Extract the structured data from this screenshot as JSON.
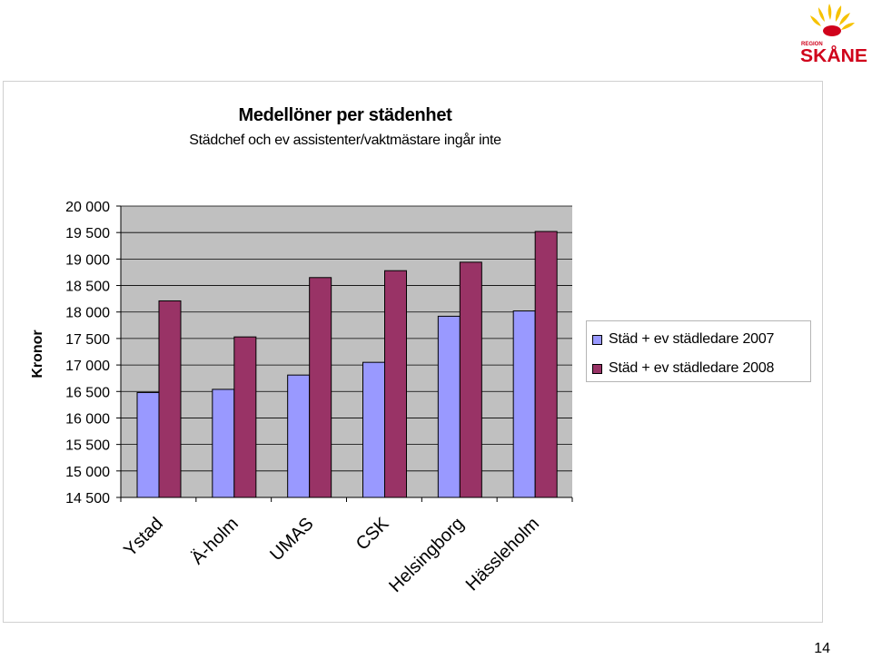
{
  "brand": {
    "logo_text_top": "REGION",
    "logo_text_main": "SKÅNE",
    "logo_yellow": "#f6c200",
    "logo_red": "#d0021b"
  },
  "page": {
    "number": "14"
  },
  "chart_data": {
    "type": "bar",
    "title": "Medellöner per städenhet",
    "subtitle": "Städchef och ev assistenter/vaktmästare ingår inte",
    "ylabel": "Kronor",
    "xlabel": "",
    "categories": [
      "Ystad",
      "Ä-holm",
      "UMAS",
      "CSK",
      "Helsingborg",
      "Hässleholm"
    ],
    "series": [
      {
        "name": "Städ + ev städledare 2007",
        "color": "#9999ff",
        "values": [
          16480,
          16540,
          16810,
          17050,
          17920,
          18020
        ]
      },
      {
        "name": "Städ + ev städledare 2008",
        "color": "#993366",
        "values": [
          18210,
          17530,
          18650,
          18780,
          18940,
          19520
        ]
      }
    ],
    "ylim": [
      14500,
      20000
    ],
    "yticks": [
      20000,
      19500,
      19000,
      18500,
      18000,
      17500,
      17000,
      16500,
      16000,
      15500,
      15000,
      14500
    ],
    "ytick_labels": [
      "20 000",
      "19 500",
      "19 000",
      "18 500",
      "18 000",
      "17 500",
      "17 000",
      "16 500",
      "16 000",
      "15 500",
      "15 000",
      "14 500"
    ],
    "plot_background": "#c0c0c0",
    "grid": true,
    "legend_position": "right"
  }
}
